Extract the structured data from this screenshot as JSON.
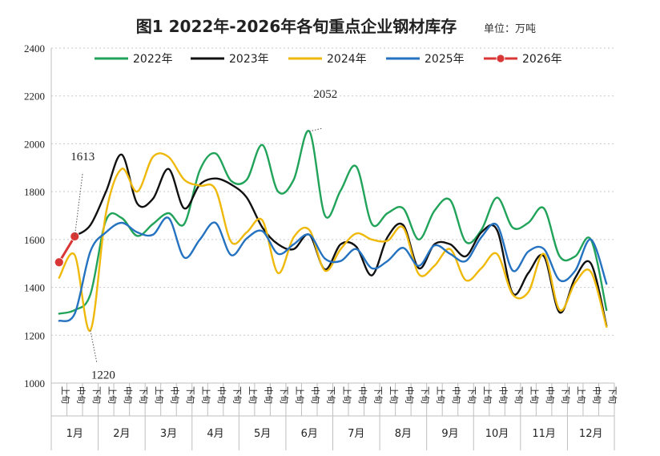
{
  "chart_data": {
    "type": "line",
    "title": "图1 2022年-2026年各旬重点企业钢材库存",
    "unit": "单位：万吨",
    "ylim": [
      1000,
      2400
    ],
    "yticks": [
      1000,
      1200,
      1400,
      1600,
      1800,
      2000,
      2200,
      2400
    ],
    "grid": true,
    "legend_position": "top",
    "months": [
      "1月",
      "2月",
      "3月",
      "4月",
      "5月",
      "6月",
      "7月",
      "8月",
      "9月",
      "10月",
      "11月",
      "12月"
    ],
    "dekads": [
      "上旬",
      "中旬",
      "下旬"
    ],
    "series": [
      {
        "name": "2022年",
        "color": "#21a35a",
        "values": [
          1290,
          1305,
          1370,
          1680,
          1690,
          1615,
          1665,
          1710,
          1665,
          1890,
          1960,
          1845,
          1850,
          1995,
          1800,
          1850,
          2052,
          1700,
          1805,
          1905,
          1665,
          1710,
          1730,
          1600,
          1720,
          1765,
          1590,
          1640,
          1775,
          1650,
          1670,
          1730,
          1530,
          1530,
          1600,
          1305
        ]
      },
      {
        "name": "2023年",
        "color": "#111111",
        "values": [
          null,
          1615,
          1660,
          1800,
          1955,
          1750,
          1770,
          1895,
          1730,
          1830,
          1855,
          1830,
          1775,
          1650,
          1580,
          1560,
          1620,
          1475,
          1580,
          1570,
          1450,
          1610,
          1660,
          1480,
          1580,
          1580,
          1530,
          1630,
          1640,
          1375,
          1460,
          1530,
          1295,
          1440,
          1500,
          1240
        ]
      },
      {
        "name": "2024年",
        "color": "#efb90b",
        "values": [
          1440,
          1535,
          1220,
          1710,
          1895,
          1800,
          1945,
          1945,
          1850,
          1825,
          1810,
          1590,
          1630,
          1680,
          1460,
          1610,
          1640,
          1470,
          1560,
          1625,
          1600,
          1595,
          1650,
          1455,
          1490,
          1560,
          1430,
          1480,
          1540,
          1370,
          1380,
          1540,
          1305,
          1420,
          1465,
          1235
        ]
      },
      {
        "name": "2025年",
        "color": "#2472c0",
        "values": [
          1260,
          1290,
          1550,
          1630,
          1670,
          1630,
          1620,
          1690,
          1525,
          1600,
          1670,
          1535,
          1605,
          1635,
          1540,
          1580,
          1620,
          1520,
          1510,
          1560,
          1480,
          1510,
          1565,
          1490,
          1575,
          1540,
          1510,
          1610,
          1660,
          1470,
          1550,
          1560,
          1430,
          1470,
          1600,
          1415
        ]
      },
      {
        "name": "2026年",
        "color": "#d93636",
        "marker": "circle",
        "values": [
          1505,
          1613
        ]
      }
    ],
    "annotations": [
      {
        "text": "2052",
        "series": "2022年",
        "index": 16,
        "value": 2052
      },
      {
        "text": "1613",
        "series": "2026年",
        "index": 1,
        "value": 1613
      },
      {
        "text": "1220",
        "series": "2024年",
        "index": 2,
        "value": 1220
      }
    ]
  }
}
